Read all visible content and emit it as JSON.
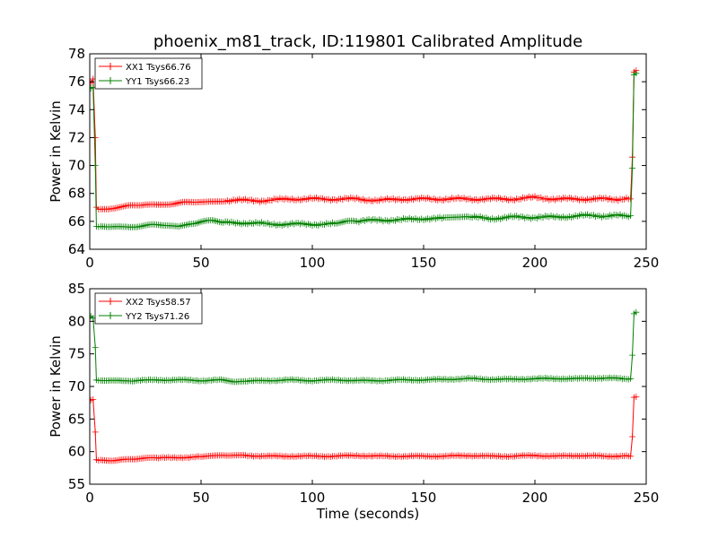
{
  "chart_data": [
    {
      "type": "line",
      "title": "phoenix_m81_track, ID:119801 Calibrated Amplitude",
      "xlabel": "",
      "ylabel": "Power in Kelvin",
      "xlim": [
        0,
        250
      ],
      "ylim": [
        64,
        78
      ],
      "xticks": [
        0,
        50,
        100,
        150,
        200,
        250
      ],
      "yticks": [
        64,
        66,
        68,
        70,
        72,
        74,
        76,
        78
      ],
      "legend": "top-left",
      "series": [
        {
          "name": "XX1 Tsys66.76",
          "color": "#ff0000",
          "x": [
            0.5,
            1.5,
            2.5,
            3,
            5,
            10,
            15,
            20,
            25,
            30,
            35,
            40,
            45,
            50,
            55,
            60,
            70,
            80,
            90,
            100,
            110,
            120,
            130,
            140,
            150,
            160,
            170,
            180,
            190,
            200,
            210,
            220,
            230,
            242,
            243,
            243.8,
            244.5,
            245.5
          ],
          "y": [
            76.0,
            76.2,
            72.0,
            67.0,
            66.9,
            67.0,
            67.0,
            67.1,
            67.2,
            67.2,
            67.3,
            67.3,
            67.3,
            67.4,
            67.4,
            67.5,
            67.5,
            67.5,
            67.6,
            67.6,
            67.6,
            67.6,
            67.5,
            67.6,
            67.6,
            67.6,
            67.6,
            67.6,
            67.6,
            67.7,
            67.6,
            67.6,
            67.6,
            67.6,
            67.6,
            70.6,
            76.7,
            76.8
          ]
        },
        {
          "name": "YY1 Tsys66.23",
          "color": "#008000",
          "x": [
            0.5,
            1.5,
            2.5,
            3,
            5,
            10,
            15,
            20,
            25,
            30,
            35,
            40,
            45,
            50,
            55,
            60,
            70,
            80,
            90,
            100,
            110,
            115,
            120,
            130,
            140,
            150,
            160,
            165,
            170,
            180,
            190,
            200,
            210,
            220,
            230,
            242,
            243,
            243.8,
            244.5,
            245.5
          ],
          "y": [
            75.5,
            75.6,
            70.0,
            65.6,
            65.6,
            65.6,
            65.6,
            65.7,
            65.7,
            65.7,
            65.7,
            65.6,
            65.9,
            66.0,
            66.0,
            65.9,
            65.9,
            65.8,
            65.8,
            65.8,
            65.8,
            66.0,
            66.0,
            66.1,
            66.1,
            66.2,
            66.2,
            66.3,
            66.3,
            66.2,
            66.3,
            66.3,
            66.3,
            66.4,
            66.4,
            66.4,
            66.4,
            69.8,
            76.5,
            76.6
          ]
        }
      ]
    },
    {
      "type": "line",
      "title": "",
      "xlabel": "Time (seconds)",
      "ylabel": "Power in Kelvin",
      "xlim": [
        0,
        250
      ],
      "ylim": [
        55,
        85
      ],
      "xticks": [
        0,
        50,
        100,
        150,
        200,
        250
      ],
      "yticks": [
        55,
        60,
        65,
        70,
        75,
        80,
        85
      ],
      "legend": "top-left",
      "series": [
        {
          "name": "XX2 Tsys58.57",
          "color": "#ff0000",
          "x": [
            0.5,
            1.5,
            2.5,
            3,
            5,
            10,
            15,
            20,
            25,
            30,
            40,
            50,
            55,
            60,
            65,
            70,
            80,
            90,
            100,
            110,
            120,
            130,
            140,
            150,
            160,
            170,
            180,
            190,
            200,
            210,
            220,
            230,
            242,
            243,
            243.8,
            244.5,
            245.5
          ],
          "y": [
            68.0,
            68.0,
            63.0,
            58.8,
            58.7,
            58.7,
            58.8,
            58.8,
            59.0,
            59.0,
            59.1,
            59.2,
            59.3,
            59.5,
            59.5,
            59.4,
            59.3,
            59.3,
            59.3,
            59.3,
            59.4,
            59.3,
            59.3,
            59.3,
            59.3,
            59.4,
            59.3,
            59.3,
            59.4,
            59.3,
            59.4,
            59.3,
            59.3,
            59.3,
            62.3,
            68.3,
            68.4
          ]
        },
        {
          "name": "YY2 Tsys71.26",
          "color": "#008000",
          "x": [
            0.5,
            1.5,
            2.5,
            3,
            5,
            10,
            15,
            20,
            30,
            40,
            50,
            60,
            65,
            70,
            80,
            90,
            100,
            110,
            120,
            130,
            140,
            150,
            160,
            170,
            180,
            190,
            200,
            210,
            220,
            230,
            242,
            243,
            243.8,
            244.5,
            245.5
          ],
          "y": [
            80.7,
            80.5,
            76.0,
            70.9,
            70.9,
            70.9,
            70.8,
            70.9,
            71.0,
            71.0,
            70.9,
            71.0,
            70.6,
            70.8,
            70.9,
            71.0,
            70.9,
            71.0,
            70.9,
            70.9,
            71.0,
            71.0,
            71.1,
            71.2,
            71.1,
            71.1,
            71.2,
            71.2,
            71.2,
            71.3,
            71.2,
            71.2,
            74.8,
            81.2,
            81.4
          ]
        }
      ]
    }
  ]
}
